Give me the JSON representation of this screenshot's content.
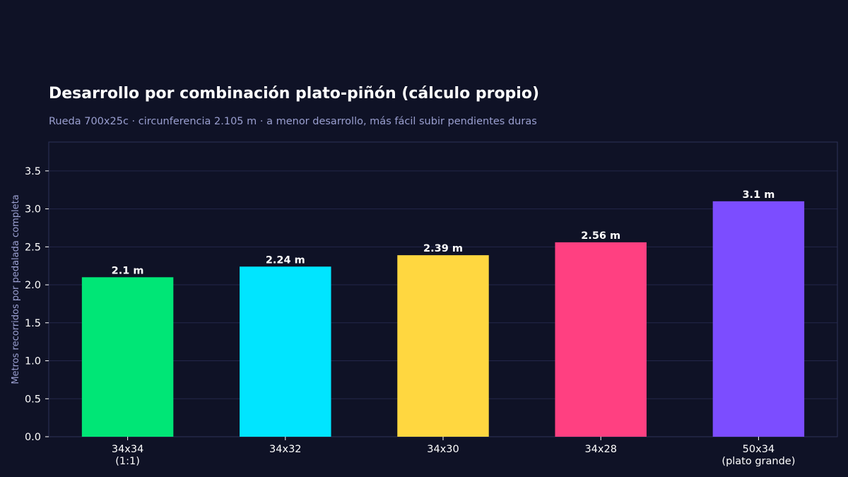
{
  "chart_data": {
    "type": "bar",
    "title": "Desarrollo por combinación plato-piñón (cálculo propio)",
    "subtitle": "Rueda 700x25c · circunferencia 2.105 m · a menor desarrollo, más fácil subir pendientes duras",
    "xlabel": "",
    "ylabel": "Metros recorridos por pedalada completa",
    "categories": [
      [
        "34x34",
        "(1:1)"
      ],
      [
        "34x32"
      ],
      [
        "34x30"
      ],
      [
        "34x28"
      ],
      [
        "50x34",
        "(plato grande)"
      ]
    ],
    "values": [
      2.1,
      2.24,
      2.39,
      2.56,
      3.1
    ],
    "data_labels": [
      "2.1 m",
      "2.24 m",
      "2.39 m",
      "2.56 m",
      "3.1 m"
    ],
    "colors": [
      "#00e676",
      "#00e5ff",
      "#ffd740",
      "#ff4081",
      "#7c4dff"
    ],
    "ylim": [
      0,
      3.88
    ],
    "yticks": [
      0.0,
      0.5,
      1.0,
      1.5,
      2.0,
      2.5,
      3.0,
      3.5
    ],
    "ytick_labels": [
      "0.0",
      "0.5",
      "1.0",
      "1.5",
      "2.0",
      "2.5",
      "3.0",
      "3.5"
    ],
    "grid": true,
    "legend": "none"
  },
  "theme": {
    "background": "#0f1226",
    "grid": "#23274a",
    "axis": "#2e3358",
    "tick_text": "#ffffff",
    "label_text": "#9a9fd0"
  }
}
